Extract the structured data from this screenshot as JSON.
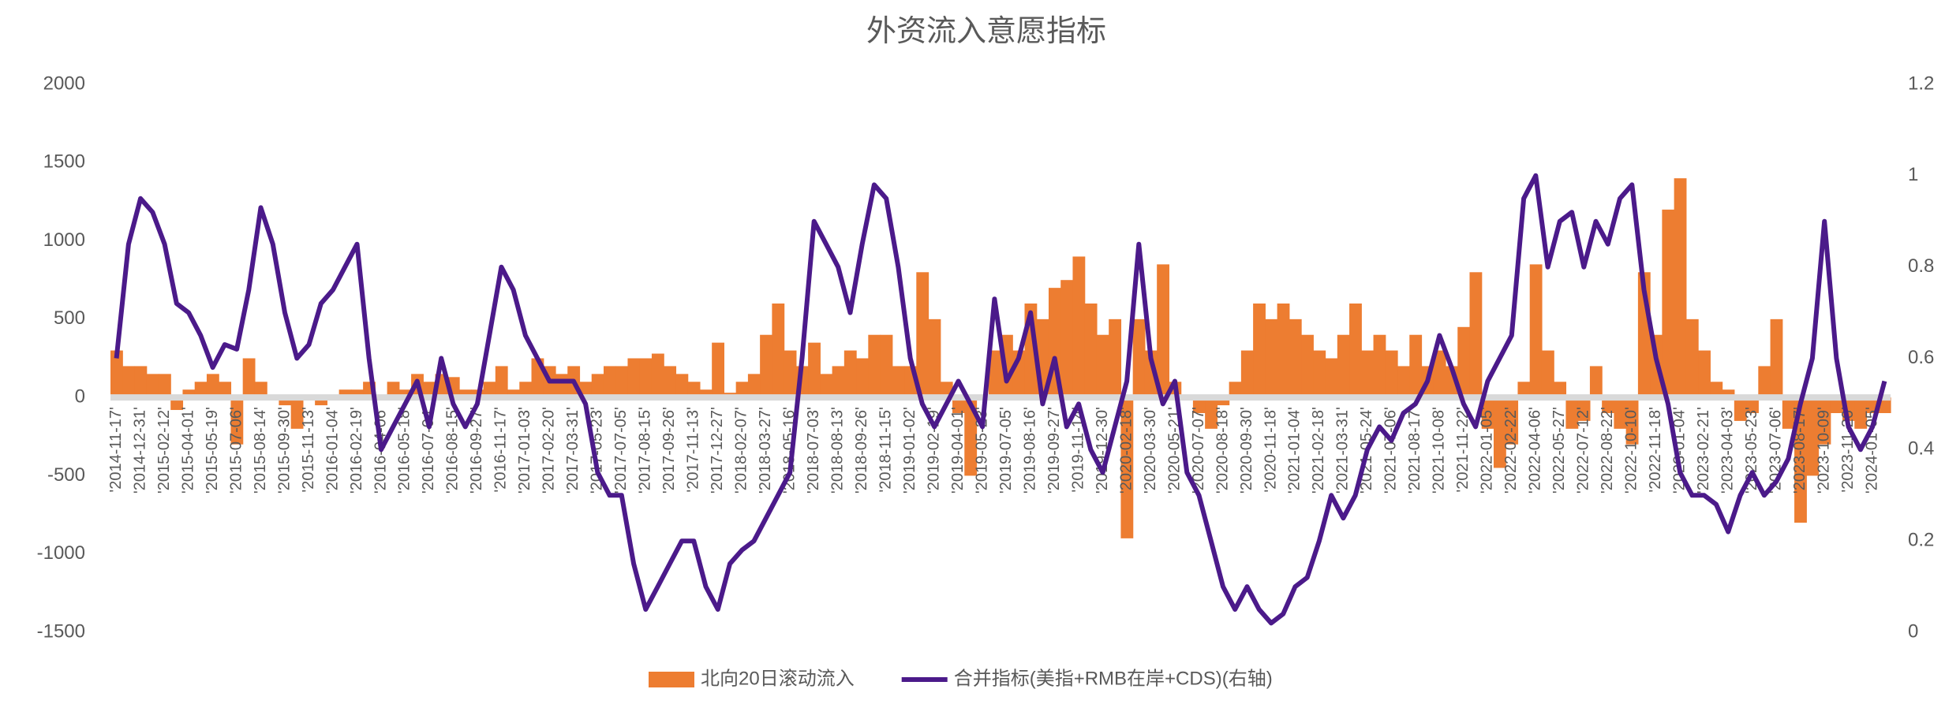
{
  "chart_data": {
    "type": "bar_line",
    "title": "外资流入意愿指标",
    "categories": [
      "'2014-11-17'",
      null,
      "'2014-12-31'",
      null,
      "'2015-02-12'",
      null,
      "'2015-04-01'",
      null,
      "'2015-05-19'",
      null,
      "'2015-07-06'",
      null,
      "'2015-08-14'",
      null,
      "'2015-09-30'",
      null,
      "'2015-11-13'",
      null,
      "'2016-01-04'",
      null,
      "'2016-02-19'",
      null,
      "'2016-04-06'",
      null,
      "'2016-05-18'",
      null,
      "'2016-07-04'",
      null,
      "'2016-08-15'",
      null,
      "'2016-09-27'",
      null,
      "'2016-11-17'",
      null,
      "'2017-01-03'",
      null,
      "'2017-02-20'",
      null,
      "'2017-03-31'",
      null,
      "'2017-05-23'",
      null,
      "'2017-07-05'",
      null,
      "'2017-08-15'",
      null,
      "'2017-09-26'",
      null,
      "'2017-11-13'",
      null,
      "'2017-12-27'",
      null,
      "'2018-02-07'",
      null,
      "'2018-03-27'",
      null,
      "'2018-05-16'",
      null,
      "'2018-07-03'",
      null,
      "'2018-08-13'",
      null,
      "'2018-09-26'",
      null,
      "'2018-11-15'",
      null,
      "'2019-01-02'",
      null,
      "'2019-02-19'",
      null,
      "'2019-04-01'",
      null,
      "'2019-05-23'",
      null,
      "'2019-07-05'",
      null,
      "'2019-08-16'",
      null,
      "'2019-09-27'",
      null,
      "'2019-11-14'",
      null,
      "'2019-12-30'",
      null,
      "'2020-02-18'",
      null,
      "'2020-03-30'",
      null,
      "'2020-05-21'",
      null,
      "'2020-07-07'",
      null,
      "'2020-08-18'",
      null,
      "'2020-09-30'",
      null,
      "'2020-11-18'",
      null,
      "'2021-01-04'",
      null,
      "'2021-02-18'",
      null,
      "'2021-03-31'",
      null,
      "'2021-05-24'",
      null,
      "'2021-07-06'",
      null,
      "'2021-08-17'",
      null,
      "'2021-10-08'",
      null,
      "'2021-11-22'",
      null,
      "'2022-01-05'",
      null,
      "'2022-02-22'",
      null,
      "'2022-04-06'",
      null,
      "'2022-05-27'",
      null,
      "'2022-07-12'",
      null,
      "'2022-08-22'",
      null,
      "'2022-10-10'",
      null,
      "'2022-11-18'",
      null,
      "'2023-01-04'",
      null,
      "'2023-02-21'",
      null,
      "'2023-04-03'",
      null,
      "'2023-05-23'",
      null,
      "'2023-07-06'",
      null,
      "'2023-08-17'",
      null,
      "'2023-10-09'",
      null,
      "'2023-11-20'",
      null,
      "'2024-01-05'",
      null
    ],
    "series": [
      {
        "name": "北向20日滚动流入",
        "type": "bar",
        "color": "#ed7d31",
        "values": [
          300,
          200,
          200,
          150,
          150,
          -80,
          50,
          100,
          150,
          100,
          -300,
          250,
          100,
          0,
          -50,
          -200,
          0,
          -50,
          0,
          50,
          50,
          100,
          0,
          100,
          50,
          150,
          100,
          150,
          130,
          50,
          50,
          100,
          200,
          50,
          100,
          250,
          200,
          150,
          200,
          100,
          150,
          200,
          200,
          250,
          250,
          280,
          200,
          150,
          100,
          50,
          350,
          30,
          100,
          150,
          400,
          600,
          300,
          200,
          350,
          150,
          200,
          300,
          250,
          400,
          400,
          200,
          200,
          800,
          500,
          100,
          -100,
          -500,
          0,
          300,
          400,
          300,
          600,
          500,
          700,
          750,
          900,
          600,
          400,
          500,
          -900,
          500,
          300,
          850,
          100,
          0,
          -100,
          -200,
          -50,
          100,
          300,
          600,
          500,
          600,
          500,
          400,
          300,
          250,
          400,
          600,
          300,
          400,
          300,
          200,
          400,
          200,
          300,
          200,
          450,
          800,
          -200,
          -450,
          -300,
          100,
          850,
          300,
          100,
          -200,
          -150,
          200,
          -100,
          -200,
          -300,
          800,
          400,
          1200,
          1400,
          500,
          300,
          100,
          50,
          -150,
          -100,
          200,
          500,
          -200,
          -800,
          -500,
          -300,
          -100,
          -150,
          -200,
          -100,
          -100
        ]
      },
      {
        "name": "合并指标(美指+RMB在岸+CDS)(右轴)",
        "type": "line",
        "axis": "y2",
        "color": "#4b1a8a",
        "values": [
          0.6,
          0.85,
          0.95,
          0.92,
          0.85,
          0.72,
          0.7,
          0.65,
          0.58,
          0.63,
          0.62,
          0.75,
          0.93,
          0.85,
          0.7,
          0.6,
          0.63,
          0.72,
          0.75,
          0.8,
          0.85,
          0.6,
          0.4,
          0.45,
          0.5,
          0.55,
          0.45,
          0.6,
          0.5,
          0.45,
          0.5,
          0.65,
          0.8,
          0.75,
          0.65,
          0.6,
          0.55,
          0.55,
          0.55,
          0.5,
          0.35,
          0.3,
          0.3,
          0.15,
          0.05,
          0.1,
          0.15,
          0.2,
          0.2,
          0.1,
          0.05,
          0.15,
          0.18,
          0.2,
          0.25,
          0.3,
          0.35,
          0.6,
          0.9,
          0.85,
          0.8,
          0.7,
          0.85,
          0.98,
          0.95,
          0.8,
          0.6,
          0.5,
          0.45,
          0.5,
          0.55,
          0.5,
          0.45,
          0.73,
          0.55,
          0.6,
          0.7,
          0.5,
          0.6,
          0.45,
          0.5,
          0.4,
          0.35,
          0.45,
          0.55,
          0.85,
          0.6,
          0.5,
          0.55,
          0.35,
          0.3,
          0.2,
          0.1,
          0.05,
          0.1,
          0.05,
          0.02,
          0.04,
          0.1,
          0.12,
          0.2,
          0.3,
          0.25,
          0.3,
          0.4,
          0.45,
          0.42,
          0.48,
          0.5,
          0.55,
          0.65,
          0.58,
          0.5,
          0.45,
          0.55,
          0.6,
          0.65,
          0.95,
          1.0,
          0.8,
          0.9,
          0.92,
          0.8,
          0.9,
          0.85,
          0.95,
          0.98,
          0.75,
          0.6,
          0.5,
          0.35,
          0.3,
          0.3,
          0.28,
          0.22,
          0.3,
          0.35,
          0.3,
          0.33,
          0.38,
          0.5,
          0.6,
          0.9,
          0.6,
          0.45,
          0.4,
          0.45,
          0.55
        ]
      }
    ],
    "ylim": [
      -1500,
      2000
    ],
    "yticks": [
      2000,
      1500,
      1000,
      500,
      0,
      -500,
      -1000,
      -1500
    ],
    "y2lim": [
      0,
      1.2
    ],
    "y2ticks": [
      1.2,
      1,
      0.8,
      0.6,
      0.4,
      0.2,
      0
    ],
    "legend": "bottom"
  }
}
